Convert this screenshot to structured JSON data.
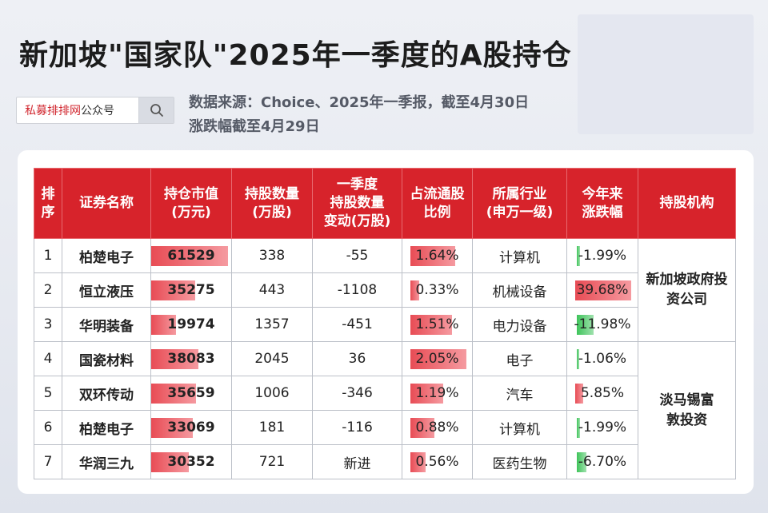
{
  "title": "新加坡\"国家队\"2025年一季度的A股持仓",
  "search": {
    "brand": "私募排排网",
    "suffix": "公众号"
  },
  "source_line1": "数据来源：Choice、2025年一季报，截至4月30日",
  "source_line2": "涨跌幅截至4月29日",
  "colors": {
    "header": "#d7232b",
    "bar_red": "#e84c55",
    "bar_green": "#3fc45a"
  },
  "headers": {
    "rank": "排序",
    "name": "证券名称",
    "value": "持仓市值(万元)",
    "shares": "持股数量(万股)",
    "change": "一季度持股数量变动(万股)",
    "ratio": "占流通股比例",
    "industry": "所属行业(申万一级)",
    "ytd": "今年来涨跌幅",
    "inst": "持股机构"
  },
  "rows": [
    {
      "rank": "1",
      "name": "柏楚电子",
      "value": "61529",
      "shares": "338",
      "change": "-55",
      "ratio": "1.64%",
      "industry": "计算机",
      "ytd": "-1.99%"
    },
    {
      "rank": "2",
      "name": "恒立液压",
      "value": "35275",
      "shares": "443",
      "change": "-1108",
      "ratio": "0.33%",
      "industry": "机械设备",
      "ytd": "39.68%"
    },
    {
      "rank": "3",
      "name": "华明装备",
      "value": "19974",
      "shares": "1357",
      "change": "-451",
      "ratio": "1.51%",
      "industry": "电力设备",
      "ytd": "-11.98%"
    },
    {
      "rank": "4",
      "name": "国瓷材料",
      "value": "38083",
      "shares": "2045",
      "change": "36",
      "ratio": "2.05%",
      "industry": "电子",
      "ytd": "-1.06%"
    },
    {
      "rank": "5",
      "name": "双环传动",
      "value": "35659",
      "shares": "1006",
      "change": "-346",
      "ratio": "1.19%",
      "industry": "汽车",
      "ytd": "5.85%"
    },
    {
      "rank": "6",
      "name": "柏楚电子",
      "value": "33069",
      "shares": "181",
      "change": "-116",
      "ratio": "0.88%",
      "industry": "计算机",
      "ytd": "-1.99%"
    },
    {
      "rank": "7",
      "name": "华润三九",
      "value": "30352",
      "shares": "721",
      "change": "新进",
      "ratio": "0.56%",
      "industry": "医药生物",
      "ytd": "-6.70%"
    }
  ],
  "institutions": [
    {
      "name": "新加坡政府投资公司",
      "rows": 3
    },
    {
      "name": "淡马锡富敦投资",
      "rows": 4
    }
  ]
}
